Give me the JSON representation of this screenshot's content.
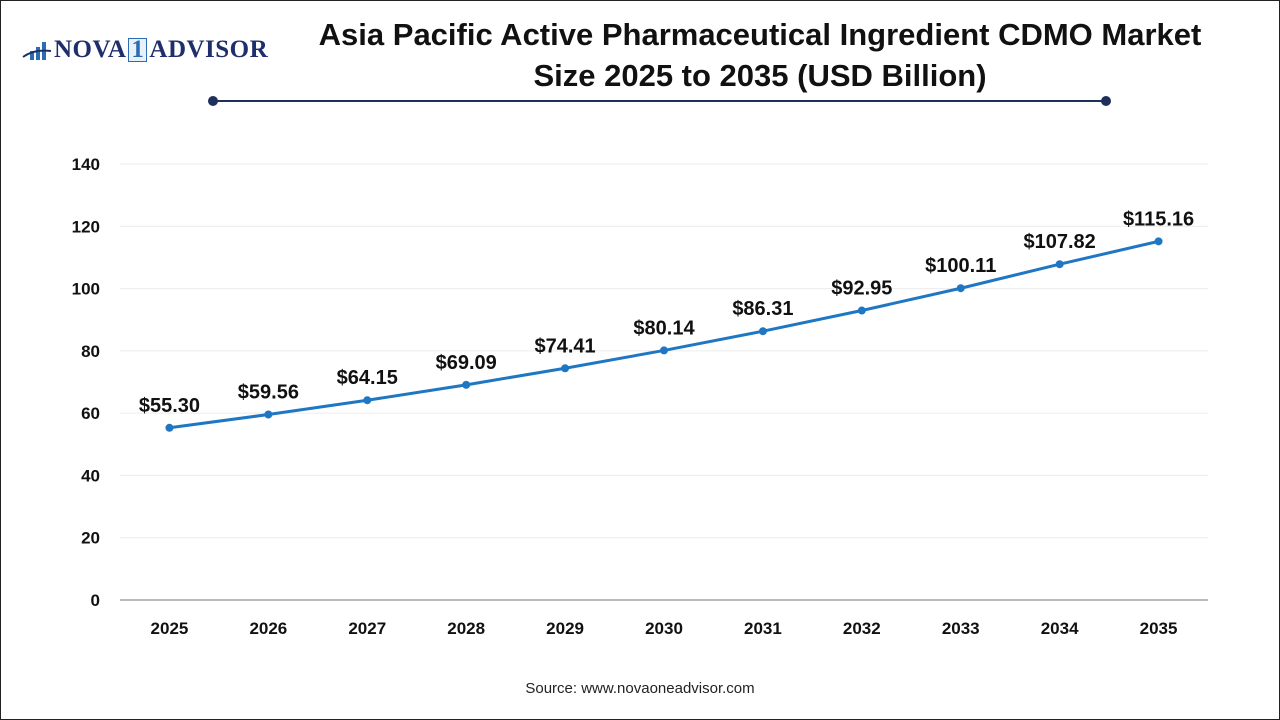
{
  "logo": {
    "text_left": "NOVA",
    "text_box": "1",
    "text_right": "ADVISOR",
    "icon": "bar-chart-swoosh-icon"
  },
  "title_line1": "Asia Pacific Active Pharmaceutical Ingredient CDMO Market",
  "title_line2": "Size 2025 to 2035 (USD Billion)",
  "source": "Source: www.novaoneadvisor.com",
  "chart_data": {
    "type": "line",
    "title": "Asia Pacific Active Pharmaceutical Ingredient CDMO Market Size 2025 to 2035 (USD Billion)",
    "categories": [
      "2025",
      "2026",
      "2027",
      "2028",
      "2029",
      "2030",
      "2031",
      "2032",
      "2033",
      "2034",
      "2035"
    ],
    "values": [
      55.3,
      59.56,
      64.15,
      69.09,
      74.41,
      80.14,
      86.31,
      92.95,
      100.11,
      107.82,
      115.16
    ],
    "data_labels": [
      "$55.30",
      "$59.56",
      "$64.15",
      "$69.09",
      "$74.41",
      "$80.14",
      "$86.31",
      "$92.95",
      "$100.11",
      "$107.82",
      "$115.16"
    ],
    "yticks": [
      "0",
      "20",
      "40",
      "60",
      "80",
      "100",
      "120",
      "140"
    ],
    "ylim": [
      0,
      140
    ],
    "grid": true,
    "line_color": "#1f77c4",
    "xlabel": "",
    "ylabel": ""
  }
}
